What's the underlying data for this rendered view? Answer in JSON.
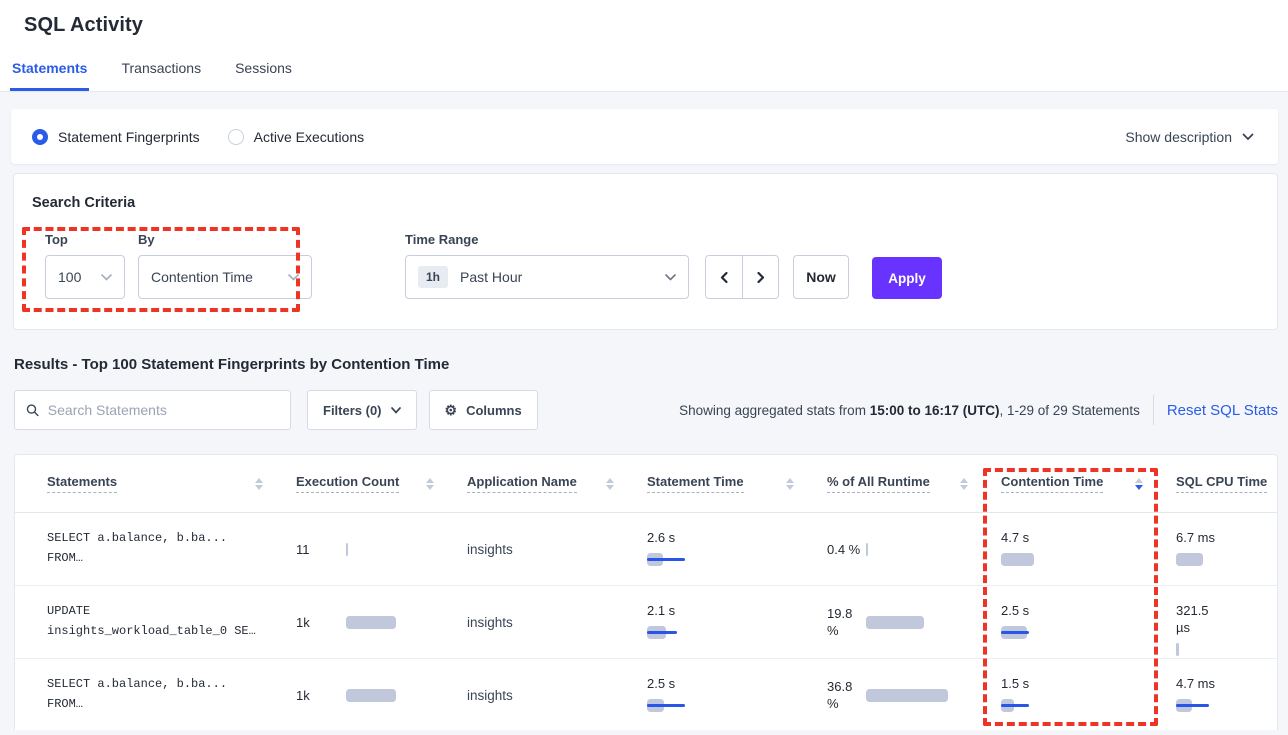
{
  "page": {
    "title": "SQL Activity"
  },
  "tabs": [
    {
      "label": "Statements"
    },
    {
      "label": "Transactions"
    },
    {
      "label": "Sessions"
    }
  ],
  "active_tab": "Statements",
  "view_toggle": {
    "options": [
      {
        "label": "Statement Fingerprints",
        "selected": true
      },
      {
        "label": "Active Executions",
        "selected": false
      }
    ],
    "show_description_label": "Show description"
  },
  "search_criteria": {
    "heading": "Search Criteria",
    "top": {
      "label": "Top",
      "value": "100"
    },
    "by": {
      "label": "By",
      "value": "Contention Time"
    },
    "time_range": {
      "label": "Time Range",
      "badge": "1h",
      "value": "Past Hour"
    },
    "now_label": "Now",
    "apply_label": "Apply"
  },
  "results": {
    "heading": "Results - Top 100 Statement Fingerprints by Contention Time",
    "search_placeholder": "Search Statements",
    "filters_label": "Filters (0)",
    "columns_label": "Columns",
    "stats": {
      "prefix": "Showing aggregated stats from ",
      "range": "15:00 to 16:17 (UTC)",
      "suffix": ", 1-29 of 29 Statements"
    },
    "reset_label": "Reset SQL Stats"
  },
  "icons": {
    "columns_gear": "⚙"
  },
  "table": {
    "columns": [
      {
        "label": "Statements",
        "sortable": true
      },
      {
        "label": "Execution Count",
        "sortable": true
      },
      {
        "label": "Application Name",
        "sortable": true
      },
      {
        "label": "Statement Time",
        "sortable": true
      },
      {
        "label": "% of All Runtime",
        "sortable": true
      },
      {
        "label": "Contention Time",
        "sortable": true,
        "sorted": "desc"
      },
      {
        "label": "SQL CPU Time",
        "sortable": false
      }
    ],
    "sorted_column": "Contention Time",
    "sort_direction": "desc",
    "rows": [
      {
        "statement_line1": "SELECT a.balance, b.ba...",
        "statement_line2": "FROM…",
        "execution_count": {
          "value": "11",
          "bar": 2
        },
        "application": "insights",
        "statement_time": {
          "value": "2.6 s",
          "bar": 16,
          "line": 38
        },
        "pct_runtime": {
          "value": "0.4 %",
          "bar": 2
        },
        "contention_time": {
          "value": "4.7 s",
          "bar": 33,
          "line": 0
        },
        "sql_cpu_time": {
          "value": "6.7 ms",
          "bar": 27,
          "line": 0
        }
      },
      {
        "statement_line1": "UPDATE",
        "statement_line2": "insights_workload_table_0 SE…",
        "execution_count": {
          "value": "1k",
          "bar": 50
        },
        "application": "insights",
        "statement_time": {
          "value": "2.1 s",
          "bar": 19,
          "line": 30
        },
        "pct_runtime": {
          "value": "19.8 %",
          "bar": 58
        },
        "contention_time": {
          "value": "2.5 s",
          "bar": 26,
          "line": 28
        },
        "sql_cpu_time": {
          "value": "321.5 µs",
          "bar": 3,
          "line": 0
        }
      },
      {
        "statement_line1": "SELECT a.balance, b.ba...",
        "statement_line2": "FROM…",
        "execution_count": {
          "value": "1k",
          "bar": 50
        },
        "application": "insights",
        "statement_time": {
          "value": "2.5 s",
          "bar": 17,
          "line": 38
        },
        "pct_runtime": {
          "value": "36.8 %",
          "bar": 82
        },
        "contention_time": {
          "value": "1.5 s",
          "bar": 13,
          "line": 28
        },
        "sql_cpu_time": {
          "value": "4.7 ms",
          "bar": 16,
          "line": 33
        }
      }
    ]
  },
  "colors": {
    "accent": "#2a5ce8",
    "apply": "#6933FF",
    "bar_gray": "#C2C8DB",
    "bar_blue": "#2955EB",
    "annot": "#EE3424"
  }
}
